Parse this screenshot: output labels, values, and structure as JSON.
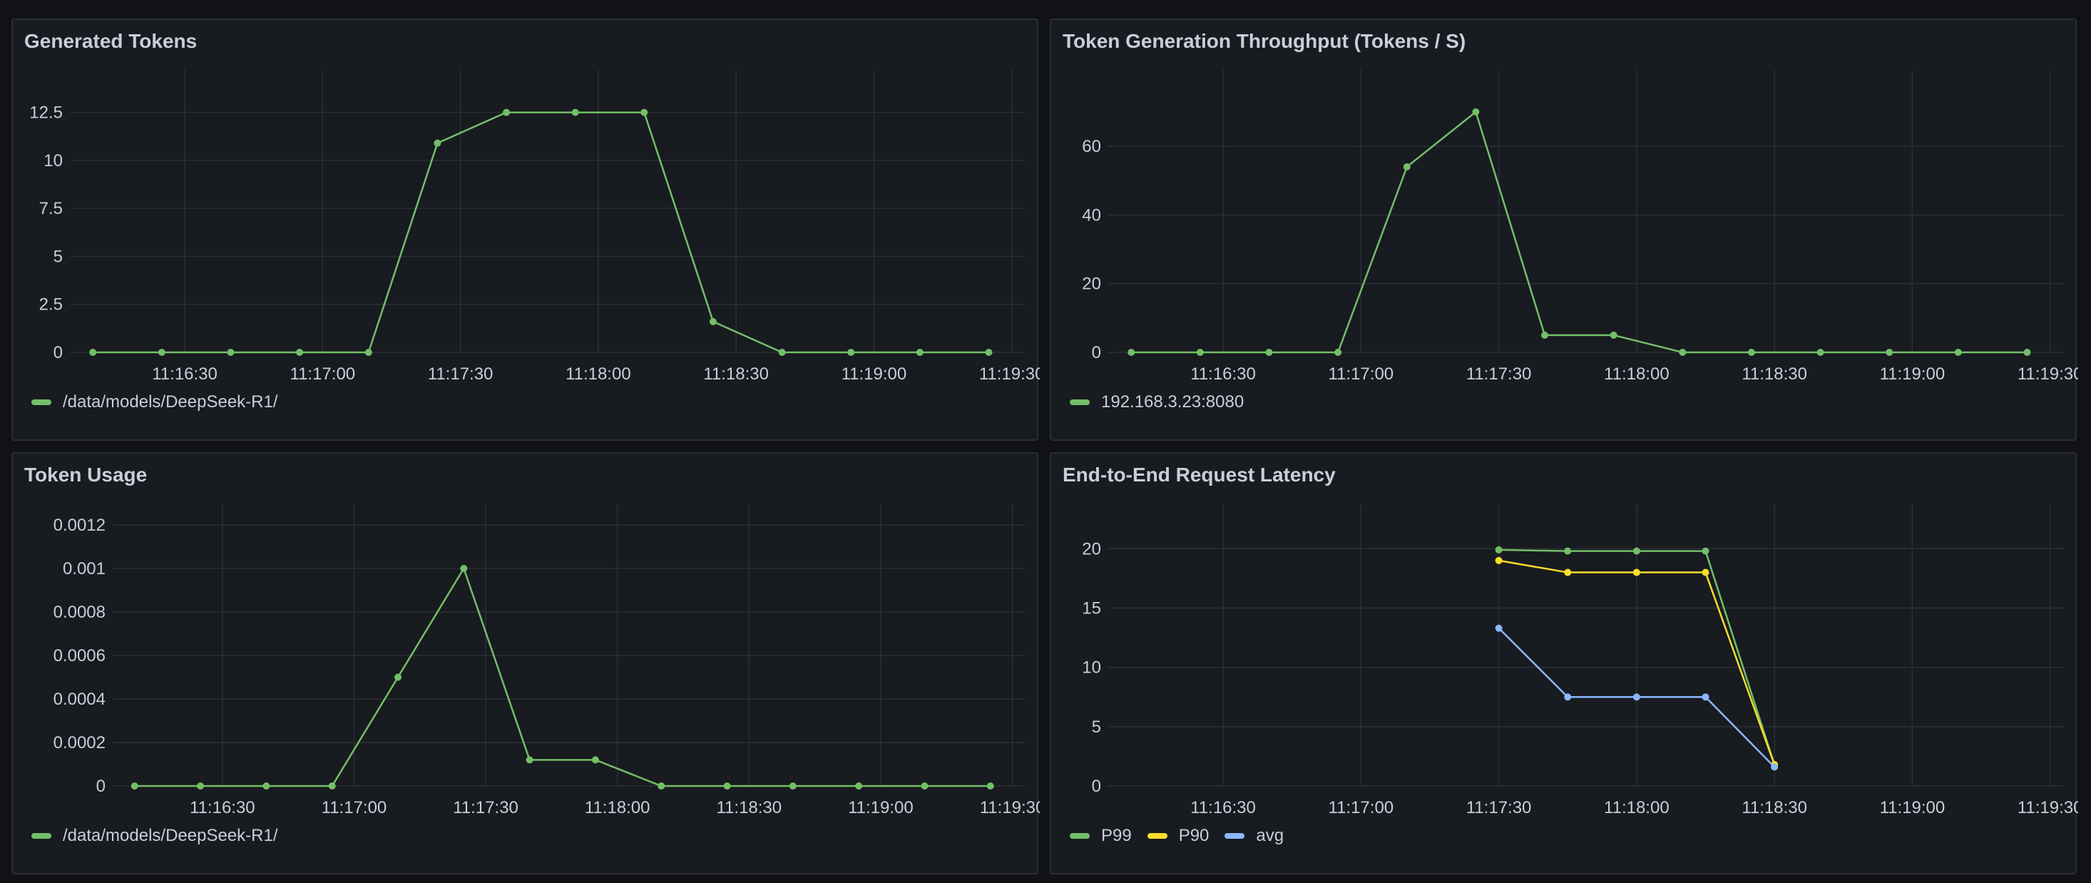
{
  "colors": {
    "background": "#111217",
    "panel": "#181b1f",
    "grid": "#2c2f36",
    "text": "#ccccdc",
    "green": "#73bf69",
    "yellow": "#fade2a",
    "blue": "#8ab8ff"
  },
  "chart_data": [
    {
      "type": "line",
      "title": "Generated Tokens",
      "x": [
        "11:16:10",
        "11:16:25",
        "11:16:40",
        "11:16:55",
        "11:17:10",
        "11:17:25",
        "11:17:40",
        "11:17:55",
        "11:18:10",
        "11:18:25",
        "11:18:40",
        "11:18:55",
        "11:19:10",
        "11:19:25"
      ],
      "xticks": [
        "11:16:30",
        "11:17:00",
        "11:17:30",
        "11:18:00",
        "11:18:30",
        "11:19:00",
        "11:19:30"
      ],
      "yticks": [
        "0",
        "2.5",
        "5",
        "7.5",
        "10",
        "12.5"
      ],
      "ylim": [
        0,
        13.6
      ],
      "series": [
        {
          "name": "/data/models/DeepSeek-R1/",
          "color": "#73bf69",
          "values": [
            0,
            0,
            0,
            0,
            0,
            10.9,
            12.5,
            12.5,
            12.5,
            1.6,
            0,
            0,
            0,
            0
          ]
        }
      ]
    },
    {
      "type": "line",
      "title": "Token Generation Throughput (Tokens / S)",
      "x": [
        "11:16:10",
        "11:16:25",
        "11:16:40",
        "11:16:55",
        "11:17:10",
        "11:17:25",
        "11:17:40",
        "11:17:55",
        "11:18:10",
        "11:18:25",
        "11:18:40",
        "11:18:55",
        "11:19:10",
        "11:19:25"
      ],
      "xticks": [
        "11:16:30",
        "11:17:00",
        "11:17:30",
        "11:18:00",
        "11:18:30",
        "11:19:00",
        "11:19:30"
      ],
      "yticks": [
        "0",
        "20",
        "40",
        "60"
      ],
      "ylim": [
        0,
        76
      ],
      "series": [
        {
          "name": "192.168.3.23:8080",
          "color": "#73bf69",
          "values": [
            0,
            0,
            0,
            0,
            54,
            70,
            5,
            5,
            0,
            0,
            0,
            0,
            0,
            0
          ]
        }
      ]
    },
    {
      "type": "line",
      "title": "Token Usage",
      "x": [
        "11:16:10",
        "11:16:25",
        "11:16:40",
        "11:16:55",
        "11:17:10",
        "11:17:25",
        "11:17:40",
        "11:17:55",
        "11:18:10",
        "11:18:25",
        "11:18:40",
        "11:18:55",
        "11:19:10",
        "11:19:25"
      ],
      "xticks": [
        "11:16:30",
        "11:17:00",
        "11:17:30",
        "11:18:00",
        "11:18:30",
        "11:19:00",
        "11:19:30"
      ],
      "yticks": [
        "0",
        "0.0002",
        "0.0004",
        "0.0006",
        "0.0008",
        "0.001",
        "0.0012"
      ],
      "ylim": [
        0,
        0.0012
      ],
      "series": [
        {
          "name": "/data/models/DeepSeek-R1/",
          "color": "#73bf69",
          "values": [
            0,
            0,
            0,
            0,
            0.0005,
            0.001,
            0.00012,
            0.00012,
            0,
            0,
            0,
            0,
            0,
            0
          ]
        }
      ]
    },
    {
      "type": "line",
      "title": "End-to-End Request Latency",
      "x": [
        "11:17:30",
        "11:17:45",
        "11:18:00",
        "11:18:15",
        "11:18:30"
      ],
      "xticks": [
        "11:16:30",
        "11:17:00",
        "11:17:30",
        "11:18:00",
        "11:18:30",
        "11:19:00",
        "11:19:30"
      ],
      "yticks": [
        "0",
        "5",
        "10",
        "15",
        "20"
      ],
      "ylim": [
        0,
        22
      ],
      "series": [
        {
          "name": "P99",
          "color": "#73bf69",
          "values": [
            19.9,
            19.8,
            19.8,
            19.8,
            1.8
          ]
        },
        {
          "name": "P90",
          "color": "#fade2a",
          "values": [
            19,
            18,
            18,
            18,
            1.8
          ]
        },
        {
          "name": "avg",
          "color": "#8ab8ff",
          "values": [
            13.3,
            7.5,
            7.5,
            7.5,
            1.6
          ]
        }
      ]
    }
  ]
}
